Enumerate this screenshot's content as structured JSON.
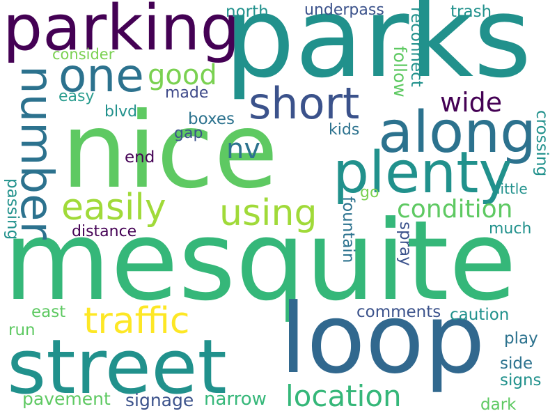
{
  "words": [
    {
      "id": "parks",
      "text": "parks",
      "color": "#21918c",
      "vertical": false
    },
    {
      "id": "mesquite",
      "text": "mesquite",
      "color": "#35b779",
      "vertical": false
    },
    {
      "id": "nice",
      "text": "nice",
      "color": "#5ec962",
      "vertical": false
    },
    {
      "id": "parking",
      "text": "parking",
      "color": "#440154",
      "vertical": false
    },
    {
      "id": "loop",
      "text": "loop",
      "color": "#31688e",
      "vertical": false
    },
    {
      "id": "street",
      "text": "street",
      "color": "#21918c",
      "vertical": false
    },
    {
      "id": "number",
      "text": "number",
      "color": "#2c728e",
      "vertical": true
    },
    {
      "id": "one",
      "text": "one",
      "color": "#2c728e",
      "vertical": false
    },
    {
      "id": "along",
      "text": "along",
      "color": "#2c728e",
      "vertical": false
    },
    {
      "id": "plenty",
      "text": "plenty",
      "color": "#21918c",
      "vertical": false
    },
    {
      "id": "short",
      "text": "short",
      "color": "#3b528b",
      "vertical": false
    },
    {
      "id": "easily",
      "text": "easily",
      "color": "#a0da39",
      "vertical": false
    },
    {
      "id": "using",
      "text": "using",
      "color": "#a0da39",
      "vertical": false
    },
    {
      "id": "traffic",
      "text": "traffic",
      "color": "#fde725",
      "vertical": false
    },
    {
      "id": "good",
      "text": "good",
      "color": "#7ad151",
      "vertical": false
    },
    {
      "id": "condition",
      "text": "condition",
      "color": "#5ec962",
      "vertical": false
    },
    {
      "id": "location",
      "text": "location",
      "color": "#35b779",
      "vertical": false
    },
    {
      "id": "nv",
      "text": "nv",
      "color": "#2c728e",
      "vertical": false
    },
    {
      "id": "wide",
      "text": "wide",
      "color": "#440154",
      "vertical": false
    },
    {
      "id": "north",
      "text": "north",
      "color": "#21918c",
      "vertical": false
    },
    {
      "id": "underpass",
      "text": "underpass",
      "color": "#3b528b",
      "vertical": false
    },
    {
      "id": "trash",
      "text": "trash",
      "color": "#21918c",
      "vertical": false
    },
    {
      "id": "consider",
      "text": "consider",
      "color": "#7ad151",
      "vertical": false
    },
    {
      "id": "easy",
      "text": "easy",
      "color": "#2a9d8f",
      "vertical": false
    },
    {
      "id": "made",
      "text": "made",
      "color": "#3e4989",
      "vertical": false
    },
    {
      "id": "blvd",
      "text": "blvd",
      "color": "#21918c",
      "vertical": false
    },
    {
      "id": "boxes",
      "text": "boxes",
      "color": "#2c728e",
      "vertical": false
    },
    {
      "id": "gap",
      "text": "gap",
      "color": "#3b528b",
      "vertical": false
    },
    {
      "id": "end",
      "text": "end",
      "color": "#440154",
      "vertical": false
    },
    {
      "id": "kids",
      "text": "kids",
      "color": "#2c728e",
      "vertical": false
    },
    {
      "id": "follow",
      "text": "follow",
      "color": "#5ec962",
      "vertical": true
    },
    {
      "id": "reconnect",
      "text": "reconnect",
      "color": "#21918c",
      "vertical": true
    },
    {
      "id": "crossing",
      "text": "crossing",
      "color": "#21918c",
      "vertical": true
    },
    {
      "id": "little",
      "text": "little",
      "color": "#21918c",
      "vertical": false
    },
    {
      "id": "go",
      "text": "go",
      "color": "#7ad151",
      "vertical": false
    },
    {
      "id": "fountain",
      "text": "fountain",
      "color": "#2c728e",
      "vertical": true
    },
    {
      "id": "spray",
      "text": "spray",
      "color": "#3b528b",
      "vertical": true
    },
    {
      "id": "much",
      "text": "much",
      "color": "#21918c",
      "vertical": false
    },
    {
      "id": "passing",
      "text": "passing",
      "color": "#21918c",
      "vertical": true
    },
    {
      "id": "distance",
      "text": "distance",
      "color": "#440154",
      "vertical": false
    },
    {
      "id": "east",
      "text": "east",
      "color": "#5ec962",
      "vertical": false
    },
    {
      "id": "run",
      "text": "run",
      "color": "#5ec962",
      "vertical": false
    },
    {
      "id": "comments",
      "text": "comments",
      "color": "#3b528b",
      "vertical": false
    },
    {
      "id": "caution",
      "text": "caution",
      "color": "#21918c",
      "vertical": false
    },
    {
      "id": "play",
      "text": "play",
      "color": "#2c728e",
      "vertical": false
    },
    {
      "id": "side",
      "text": "side",
      "color": "#2c728e",
      "vertical": false
    },
    {
      "id": "signs",
      "text": "signs",
      "color": "#21918c",
      "vertical": false
    },
    {
      "id": "dark",
      "text": "dark",
      "color": "#5ec962",
      "vertical": false
    },
    {
      "id": "pavement",
      "text": "pavement",
      "color": "#5ec962",
      "vertical": false
    },
    {
      "id": "signage",
      "text": "signage",
      "color": "#3b528b",
      "vertical": false
    },
    {
      "id": "narrow",
      "text": "narrow",
      "color": "#35b779",
      "vertical": false
    }
  ]
}
